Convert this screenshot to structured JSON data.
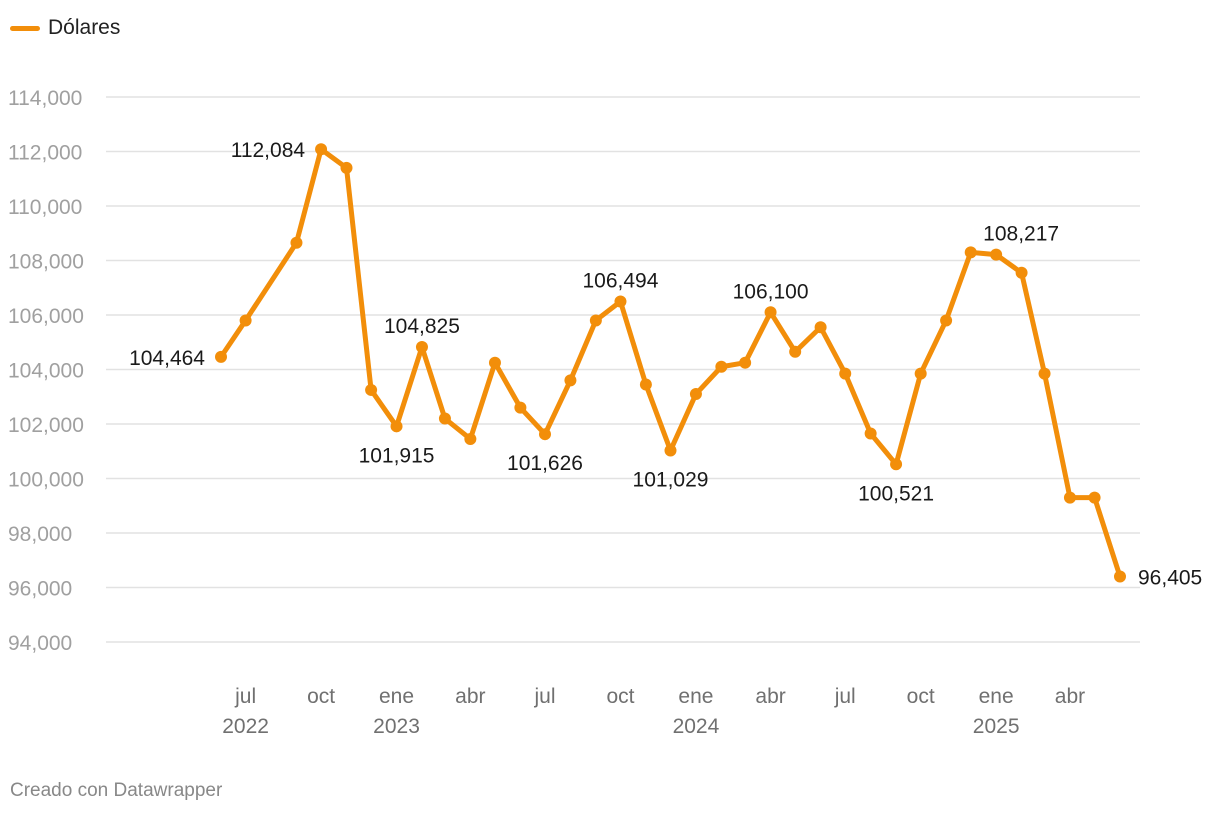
{
  "legend": {
    "label": "Dólares",
    "color": "#f28e0a"
  },
  "footer": "Creado con Datawrapper",
  "chart_data": {
    "type": "line",
    "title": "",
    "xlabel": "",
    "ylabel": "",
    "ylim": [
      94000,
      114000
    ],
    "yticks": [
      94000,
      96000,
      98000,
      100000,
      102000,
      104000,
      106000,
      108000,
      110000,
      112000,
      114000
    ],
    "ytick_labels": [
      "94,000",
      "96,000",
      "98,000",
      "100,000",
      "102,000",
      "104,000",
      "106,000",
      "108,000",
      "110,000",
      "112,000",
      "114,000"
    ],
    "grid": true,
    "x_axis": {
      "start": "2022-05-01",
      "end": "2025-07-01",
      "ticks": [
        {
          "date": "2022-07-01",
          "label": "jul",
          "year": "2022"
        },
        {
          "date": "2022-10-01",
          "label": "oct",
          "year": ""
        },
        {
          "date": "2023-01-01",
          "label": "ene",
          "year": "2023"
        },
        {
          "date": "2023-04-01",
          "label": "abr",
          "year": ""
        },
        {
          "date": "2023-07-01",
          "label": "jul",
          "year": ""
        },
        {
          "date": "2023-10-01",
          "label": "oct",
          "year": ""
        },
        {
          "date": "2024-01-01",
          "label": "ene",
          "year": "2024"
        },
        {
          "date": "2024-04-01",
          "label": "abr",
          "year": ""
        },
        {
          "date": "2024-07-01",
          "label": "jul",
          "year": ""
        },
        {
          "date": "2024-10-01",
          "label": "oct",
          "year": ""
        },
        {
          "date": "2025-01-01",
          "label": "ene",
          "year": "2025"
        },
        {
          "date": "2025-04-01",
          "label": "abr",
          "year": ""
        }
      ]
    },
    "series": [
      {
        "name": "Dólares",
        "color": "#f28e0a",
        "points": [
          {
            "x": "2022-06-01",
            "y": 104464,
            "label": "104,464",
            "label_pos": "left"
          },
          {
            "x": "2022-07-01",
            "y": 105800
          },
          {
            "x": "2022-09-01",
            "y": 108650
          },
          {
            "x": "2022-10-01",
            "y": 112084,
            "label": "112,084",
            "label_pos": "left"
          },
          {
            "x": "2022-11-01",
            "y": 111400
          },
          {
            "x": "2022-12-01",
            "y": 103250
          },
          {
            "x": "2023-01-01",
            "y": 101915,
            "label": "101,915",
            "label_pos": "below"
          },
          {
            "x": "2023-02-01",
            "y": 104825,
            "label": "104,825",
            "label_pos": "above"
          },
          {
            "x": "2023-03-01",
            "y": 102200
          },
          {
            "x": "2023-04-01",
            "y": 101450
          },
          {
            "x": "2023-05-01",
            "y": 104250
          },
          {
            "x": "2023-06-01",
            "y": 102600
          },
          {
            "x": "2023-07-01",
            "y": 101626,
            "label": "101,626",
            "label_pos": "below"
          },
          {
            "x": "2023-08-01",
            "y": 103600
          },
          {
            "x": "2023-09-01",
            "y": 105800
          },
          {
            "x": "2023-10-01",
            "y": 106494,
            "label": "106,494",
            "label_pos": "above"
          },
          {
            "x": "2023-11-01",
            "y": 103450
          },
          {
            "x": "2023-12-01",
            "y": 101029,
            "label": "101,029",
            "label_pos": "below"
          },
          {
            "x": "2024-01-01",
            "y": 103100
          },
          {
            "x": "2024-02-01",
            "y": 104100
          },
          {
            "x": "2024-03-01",
            "y": 104250
          },
          {
            "x": "2024-04-01",
            "y": 106100,
            "label": "106,100",
            "label_pos": "above"
          },
          {
            "x": "2024-05-01",
            "y": 104650
          },
          {
            "x": "2024-06-01",
            "y": 105550
          },
          {
            "x": "2024-07-01",
            "y": 103850
          },
          {
            "x": "2024-08-01",
            "y": 101650
          },
          {
            "x": "2024-09-01",
            "y": 100521,
            "label": "100,521",
            "label_pos": "below"
          },
          {
            "x": "2024-10-01",
            "y": 103850
          },
          {
            "x": "2024-11-01",
            "y": 105800
          },
          {
            "x": "2024-12-01",
            "y": 108300
          },
          {
            "x": "2025-01-01",
            "y": 108217,
            "label": "108,217",
            "label_pos": "above-left"
          },
          {
            "x": "2025-02-01",
            "y": 107550
          },
          {
            "x": "2025-03-01",
            "y": 103850
          },
          {
            "x": "2025-04-01",
            "y": 99300
          },
          {
            "x": "2025-05-01",
            "y": 99300
          },
          {
            "x": "2025-06-01",
            "y": 96405,
            "label": "96,405",
            "label_pos": "right"
          }
        ]
      }
    ]
  }
}
